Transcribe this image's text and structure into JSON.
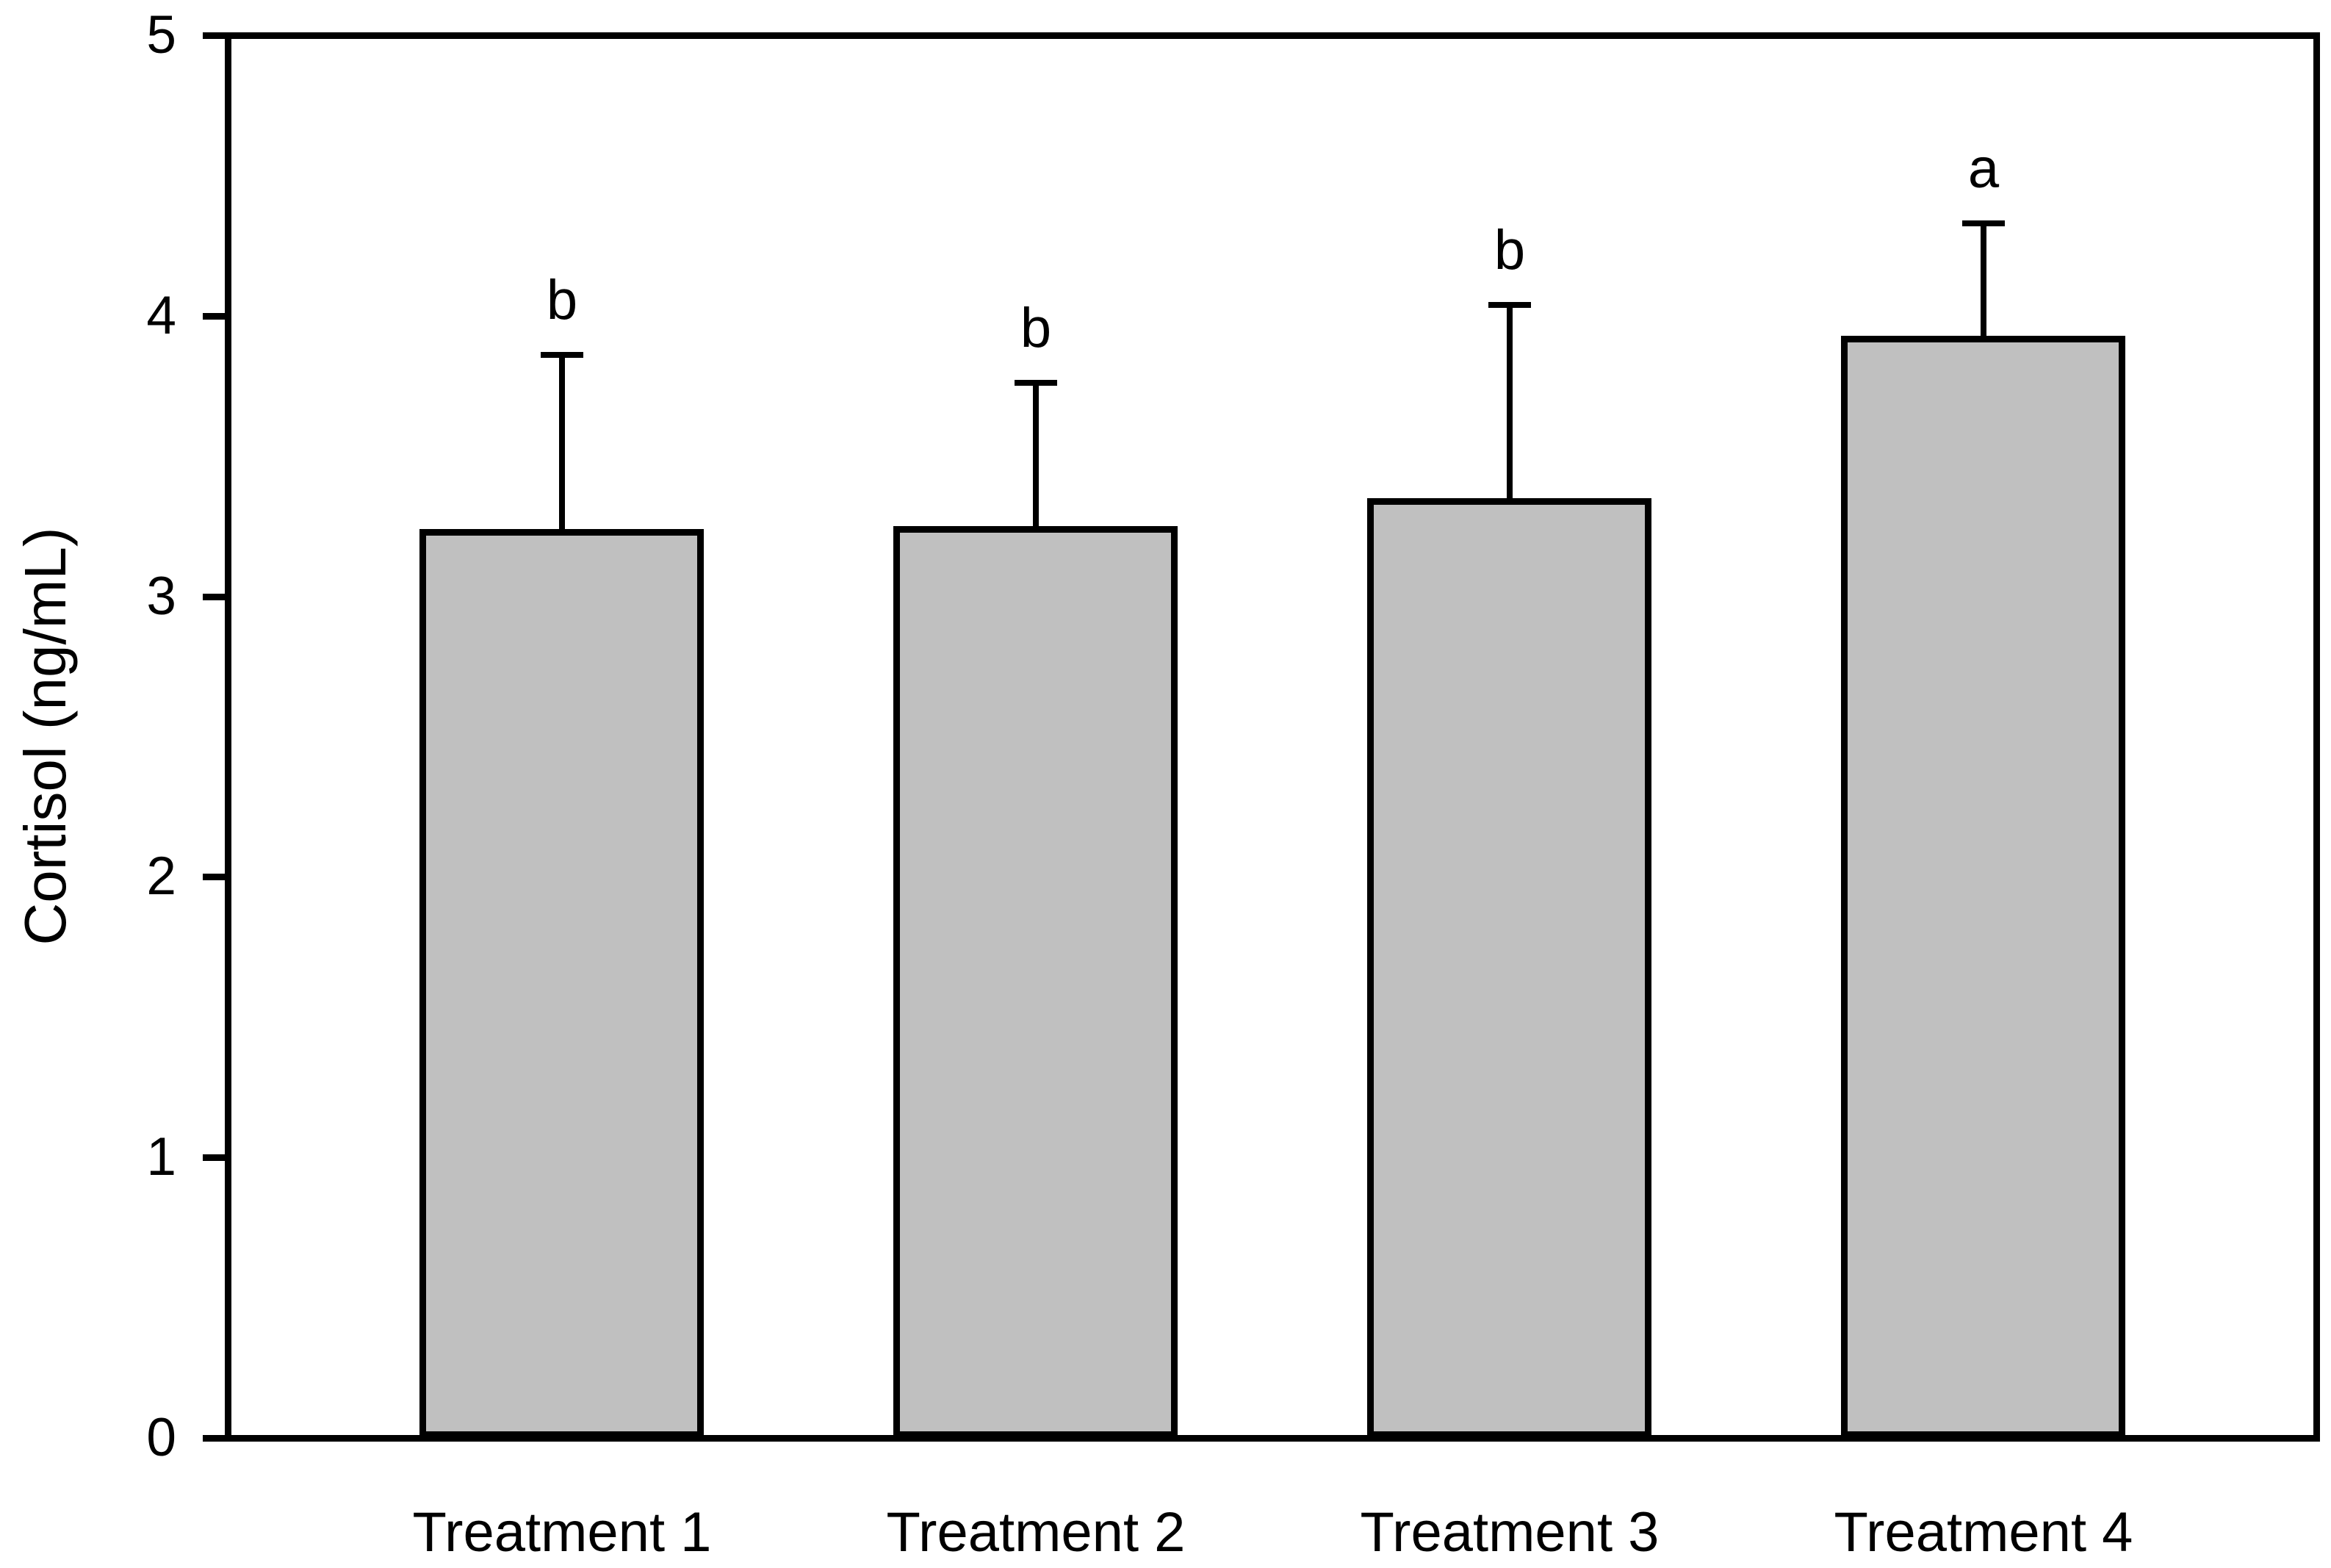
{
  "figure": {
    "background_color": "#ffffff",
    "text_color": "#000000"
  },
  "chart_data": {
    "type": "bar",
    "title": "",
    "xlabel": "",
    "ylabel": "Cortisol (ng/mL)",
    "categories": [
      "Treatment 1",
      "Treatment 2",
      "Treatment 3",
      "Treatment 4"
    ],
    "values": [
      3.24,
      3.25,
      3.35,
      3.93
    ],
    "error_plus": [
      0.62,
      0.51,
      0.69,
      0.4
    ],
    "error_bar_tops": [
      3.86,
      3.76,
      4.04,
      4.33
    ],
    "significance_letters": [
      "b",
      "b",
      "b",
      "a"
    ],
    "ylim": [
      0,
      5
    ],
    "yticks": [
      0,
      1,
      2,
      3,
      4,
      5
    ],
    "ytick_labels": [
      "0",
      "1",
      "2",
      "3",
      "4",
      "5"
    ],
    "grid": false,
    "legend": false,
    "bar_fill_color": "#c0c0c0",
    "bar_border_color": "#000000",
    "error_bar_color": "#000000",
    "axis_color": "#000000"
  }
}
